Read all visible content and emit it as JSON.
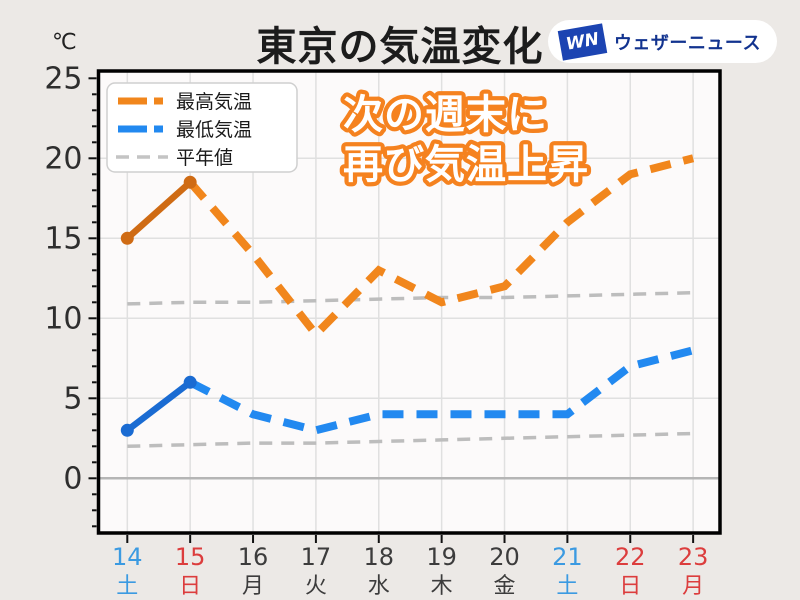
{
  "page": {
    "background": "#ECE9E6"
  },
  "header": {
    "title": "東京の気温変化",
    "unit_label": "℃"
  },
  "logo": {
    "mark": "WN",
    "text": "ウェザーニュース",
    "pill_color": "#FFFFFF",
    "mark_bg": "#1C44B2",
    "text_color": "#12338F"
  },
  "annotation": {
    "line1": "次の週末に",
    "line2": "再び気温上昇",
    "fill_color": "#FFFFFF",
    "outline_color": "#F5821F"
  },
  "chart_data": {
    "type": "line",
    "title": "東京の気温変化",
    "ylabel": "℃",
    "ylim": [
      -3.4,
      25.5
    ],
    "yticks": [
      0,
      5,
      10,
      15,
      20,
      25
    ],
    "grid": true,
    "legend_position": "upper-left",
    "plot_bg": "#FCFAFA",
    "grid_color": "#E0E0E0",
    "zero_line_color": "#B5B5B5",
    "border_color": "#000000",
    "tick_label_color": "#2E2E2E",
    "x_categories": [
      {
        "day": "14",
        "weekday": "土",
        "type": "saturday"
      },
      {
        "day": "15",
        "weekday": "日",
        "type": "sunday"
      },
      {
        "day": "16",
        "weekday": "月",
        "type": "weekday"
      },
      {
        "day": "17",
        "weekday": "火",
        "type": "weekday"
      },
      {
        "day": "18",
        "weekday": "水",
        "type": "weekday"
      },
      {
        "day": "19",
        "weekday": "木",
        "type": "weekday"
      },
      {
        "day": "20",
        "weekday": "金",
        "type": "weekday"
      },
      {
        "day": "21",
        "weekday": "土",
        "type": "saturday"
      },
      {
        "day": "22",
        "weekday": "日",
        "type": "sunday"
      },
      {
        "day": "23",
        "weekday": "月",
        "type": "holiday"
      }
    ],
    "day_colors": {
      "saturday": "#3B9AE1",
      "sunday": "#DC3D3D",
      "holiday": "#DC3D3D",
      "weekday": "#3C3C3C"
    },
    "series": [
      {
        "name": "最高気温",
        "values": [
          15,
          18.5,
          14,
          9,
          13,
          11,
          12,
          16,
          19,
          20
        ],
        "color_solid": "#CF6B14",
        "color_dash": "#F1861C",
        "observed_points": 2,
        "style": "solid-then-dashed"
      },
      {
        "name": "最低気温",
        "values": [
          3,
          6,
          4,
          3,
          4,
          4,
          4,
          4,
          7,
          8
        ],
        "color_solid": "#1A6BD2",
        "color_dash": "#2289F0",
        "observed_points": 2,
        "style": "solid-then-dashed"
      },
      {
        "name": "平年値(最高気温)",
        "values": [
          10.9,
          11.0,
          11.0,
          11.1,
          11.2,
          11.3,
          11.3,
          11.4,
          11.5,
          11.6
        ],
        "color": "#BDBDBD",
        "style": "dashed"
      },
      {
        "name": "平年値(最低気温)",
        "values": [
          2.0,
          2.1,
          2.2,
          2.2,
          2.3,
          2.4,
          2.5,
          2.6,
          2.7,
          2.8
        ],
        "color": "#BDBDBD",
        "style": "dashed"
      }
    ],
    "legend": [
      {
        "label": "最高気温",
        "color": "#F1861C",
        "kind": "thick-dash"
      },
      {
        "label": "最低気温",
        "color": "#2289F0",
        "kind": "thick-dash"
      },
      {
        "label": "平年値",
        "color": "#C4C4C4",
        "kind": "thin-dash"
      }
    ]
  }
}
